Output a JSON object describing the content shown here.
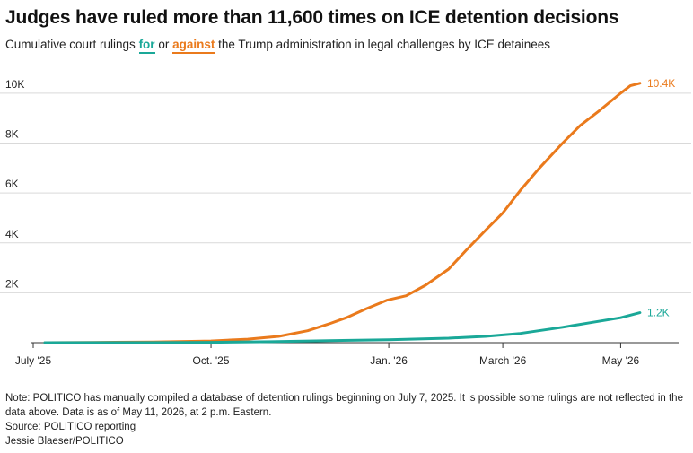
{
  "title": "Judges have ruled more than 11,600 times on ICE detention decisions",
  "subtitle": {
    "prefix": "Cumulative court rulings ",
    "for_word": "for",
    "middle": " or ",
    "against_word": "against",
    "suffix": " the Trump administration in legal challenges by ICE detainees"
  },
  "colors": {
    "for": "#1aa898",
    "against": "#ea7a1c",
    "grid": "#d9d9d9",
    "axis": "#333333"
  },
  "chart_data": {
    "type": "line",
    "x_axis": {
      "min": "2025-07-01",
      "max": "2026-05-31",
      "ticks": [
        {
          "date": "2025-07-01",
          "label": "July '25"
        },
        {
          "date": "2025-10-01",
          "label": "Oct. '25"
        },
        {
          "date": "2026-01-01",
          "label": "Jan. '26"
        },
        {
          "date": "2026-03-01",
          "label": "March '26"
        },
        {
          "date": "2026-05-01",
          "label": "May '26"
        }
      ]
    },
    "y_axis": {
      "min": 0,
      "max": 10500,
      "ticks": [
        {
          "value": 2000,
          "label": "2K"
        },
        {
          "value": 4000,
          "label": "4K"
        },
        {
          "value": 6000,
          "label": "6K"
        },
        {
          "value": 8000,
          "label": "8K"
        },
        {
          "value": 10000,
          "label": "10K"
        }
      ]
    },
    "grid": true,
    "series": [
      {
        "key": "against",
        "end_label": "10.4K",
        "points": [
          [
            "2025-07-07",
            0
          ],
          [
            "2025-08-01",
            10
          ],
          [
            "2025-09-01",
            30
          ],
          [
            "2025-10-01",
            70
          ],
          [
            "2025-10-20",
            140
          ],
          [
            "2025-11-05",
            250
          ],
          [
            "2025-11-20",
            480
          ],
          [
            "2025-12-01",
            750
          ],
          [
            "2025-12-10",
            1000
          ],
          [
            "2025-12-20",
            1350
          ],
          [
            "2025-12-31",
            1700
          ],
          [
            "2026-01-10",
            1880
          ],
          [
            "2026-01-20",
            2300
          ],
          [
            "2026-02-01",
            2950
          ],
          [
            "2026-02-10",
            3700
          ],
          [
            "2026-02-20",
            4500
          ],
          [
            "2026-03-01",
            5200
          ],
          [
            "2026-03-10",
            6100
          ],
          [
            "2026-03-20",
            7000
          ],
          [
            "2026-04-01",
            8000
          ],
          [
            "2026-04-10",
            8700
          ],
          [
            "2026-04-20",
            9300
          ],
          [
            "2026-05-01",
            10000
          ],
          [
            "2026-05-06",
            10300
          ],
          [
            "2026-05-11",
            10400
          ]
        ]
      },
      {
        "key": "for",
        "end_label": "1.2K",
        "points": [
          [
            "2025-07-07",
            0
          ],
          [
            "2025-09-01",
            5
          ],
          [
            "2025-10-01",
            15
          ],
          [
            "2025-11-01",
            40
          ],
          [
            "2025-12-01",
            80
          ],
          [
            "2026-01-01",
            120
          ],
          [
            "2026-02-01",
            180
          ],
          [
            "2026-02-20",
            250
          ],
          [
            "2026-03-10",
            370
          ],
          [
            "2026-04-01",
            620
          ],
          [
            "2026-04-15",
            800
          ],
          [
            "2026-05-01",
            1000
          ],
          [
            "2026-05-11",
            1200
          ]
        ]
      }
    ]
  },
  "notes": {
    "note": "Note: POLITICO has manually compiled a database of detention rulings beginning on July 7, 2025. It is possible some rulings are not reflected in the data above. Data is as of May 11, 2026, at 2 p.m. Eastern.",
    "source": "Source: POLITICO reporting",
    "credit": "Jessie Blaeser/POLITICO"
  }
}
